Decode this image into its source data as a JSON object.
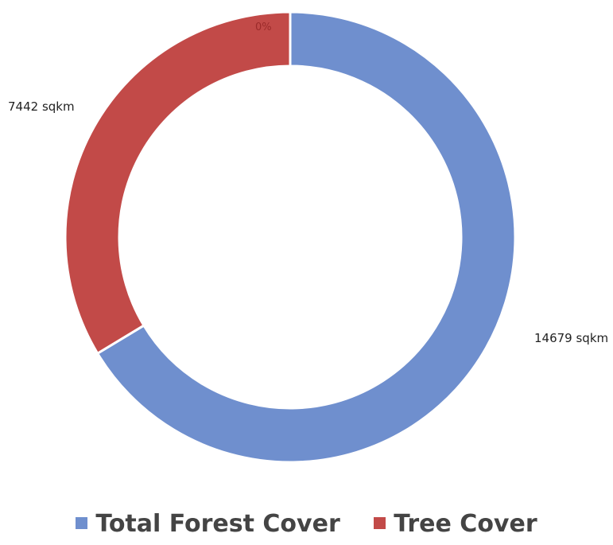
{
  "chart_data": {
    "type": "pie",
    "variant": "donut",
    "categories": [
      "Total Forest Cover",
      "Tree Cover",
      ""
    ],
    "values": [
      14679,
      7442,
      0
    ],
    "data_labels": [
      "14679 sqkm",
      "7442 sqkm",
      "0%"
    ],
    "colors": [
      "#6f8fce",
      "#c24a48",
      "#a62a2a"
    ],
    "title": "",
    "legend_position": "bottom"
  },
  "legend": {
    "items": [
      {
        "label": "Total Forest Cover",
        "color": "#6f8fce"
      },
      {
        "label": "Tree Cover",
        "color": "#c24a48"
      }
    ]
  }
}
